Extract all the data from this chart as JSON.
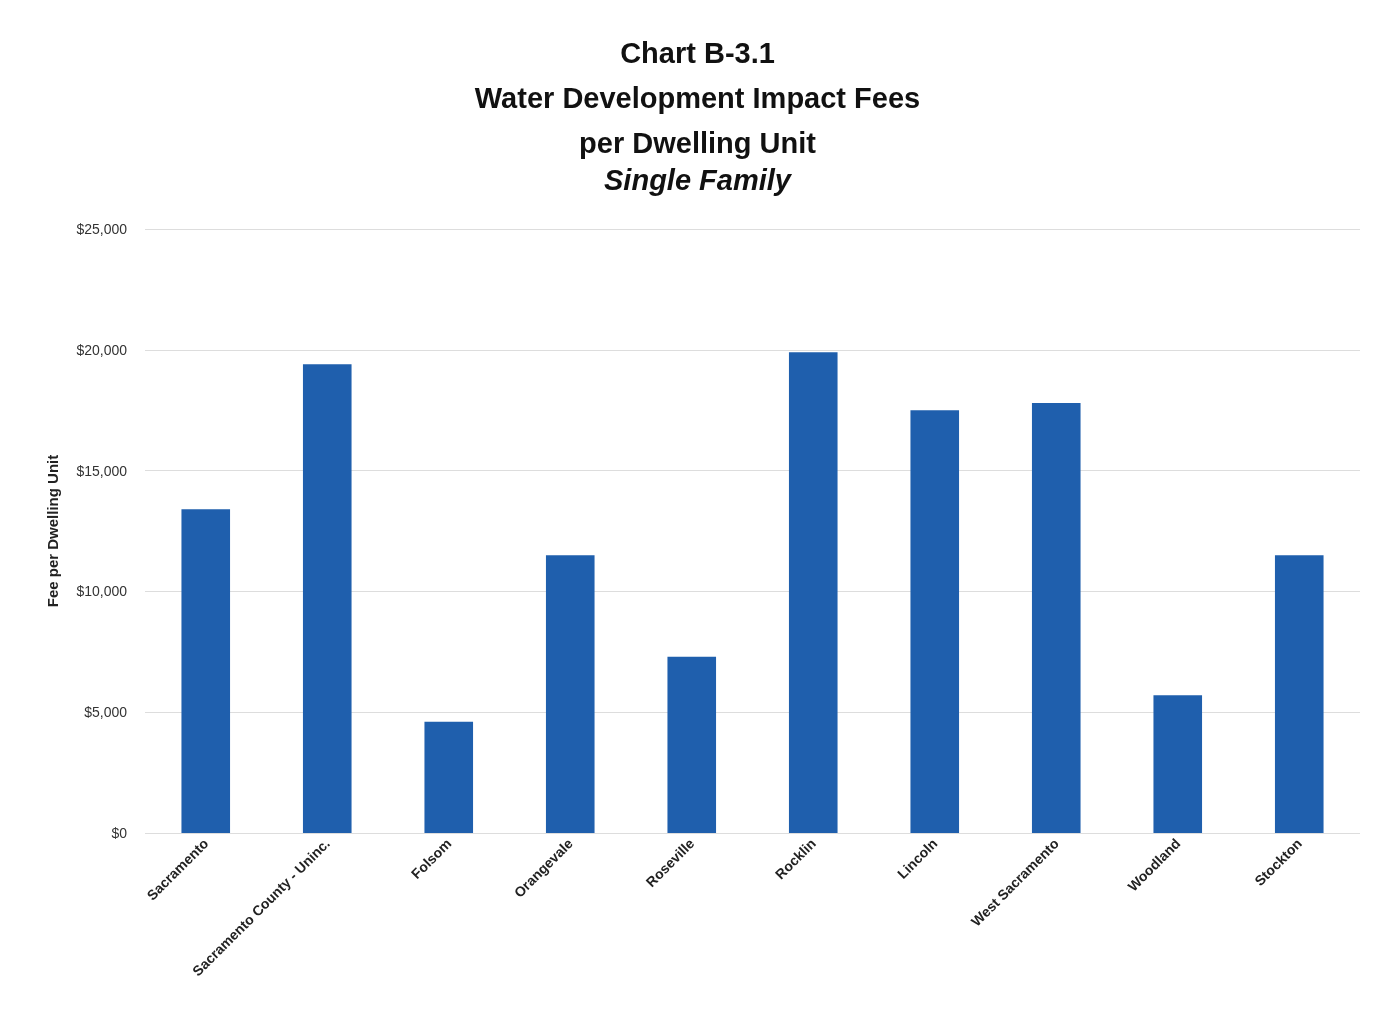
{
  "chart_data": {
    "type": "bar",
    "title": "Chart B-3.1\nWater Development Impact Fees\nper Dwelling Unit",
    "subtitle": "Single Family",
    "ylabel": "Fee per Dwelling Unit",
    "categories": [
      "Sacramento",
      "Sacramento County - Uninc.",
      "Folsom",
      "Orangevale",
      "Roseville",
      "Rocklin",
      "Lincoln",
      "West Sacramento",
      "Woodland",
      "Stockton"
    ],
    "values": [
      13400,
      19400,
      4600,
      11500,
      7300,
      19900,
      17500,
      17800,
      5700,
      11500
    ],
    "color": "#1f5fad",
    "ylim": [
      0,
      25000
    ],
    "yticks": [
      {
        "value": 0,
        "label": "$0"
      },
      {
        "value": 5000,
        "label": "$5,000"
      },
      {
        "value": 10000,
        "label": "$10,000"
      },
      {
        "value": 15000,
        "label": "$15,000"
      },
      {
        "value": 20000,
        "label": "$20,000"
      },
      {
        "value": 25000,
        "label": "$25,000"
      }
    ],
    "grid": "y"
  }
}
